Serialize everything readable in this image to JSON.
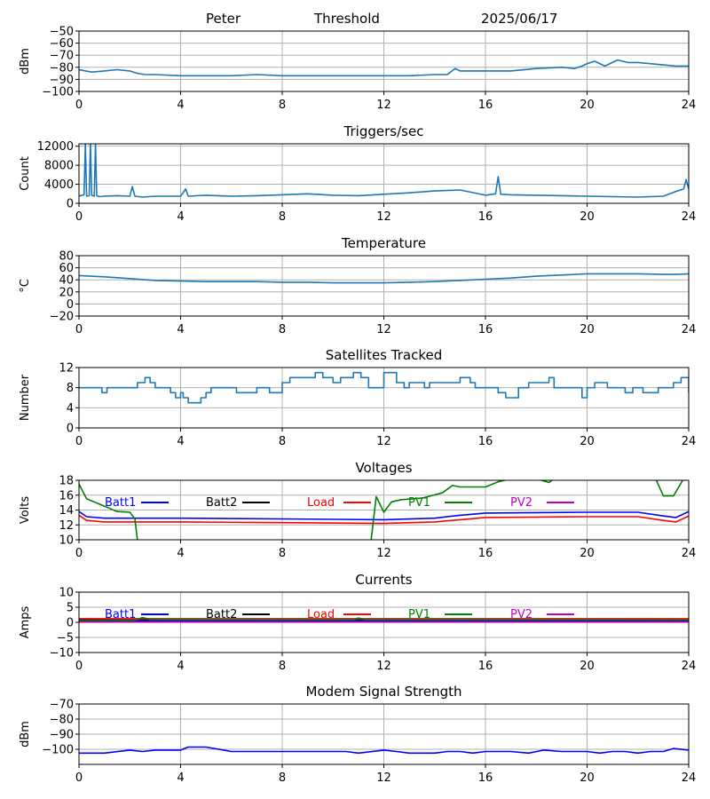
{
  "header": {
    "site": "Peter",
    "label": "Threshold",
    "date": "2025/06/17"
  },
  "x_axis": {
    "min": 0,
    "max": 24,
    "ticks": [
      0,
      4,
      8,
      12,
      16,
      20,
      24
    ]
  },
  "chart_data": [
    {
      "type": "line",
      "title": "",
      "ylabel": "dBm",
      "ylim": [
        -100,
        -50
      ],
      "yticks": [
        -100,
        -90,
        -80,
        -70,
        -60,
        -50
      ],
      "grid": true,
      "series": [
        {
          "color": "#1f77b4",
          "x": [
            0,
            0.5,
            1,
            1.5,
            2,
            2.3,
            2.6,
            3,
            4,
            5,
            6,
            7,
            8,
            9,
            10,
            11,
            12,
            13,
            14,
            14.5,
            14.8,
            15,
            16,
            17,
            18,
            19,
            19.5,
            19.8,
            20,
            20.3,
            20.7,
            21.2,
            21.6,
            22,
            23,
            23.5,
            24
          ],
          "y": [
            -82,
            -84,
            -83,
            -82,
            -83,
            -85,
            -86,
            -86,
            -87,
            -87,
            -87,
            -86,
            -87,
            -87,
            -87,
            -87,
            -87,
            -87,
            -86,
            -86,
            -81,
            -83,
            -83,
            -83,
            -81,
            -80,
            -81,
            -79,
            -77,
            -75,
            -79,
            -74,
            -76,
            -76,
            -78,
            -79,
            -79
          ]
        }
      ]
    },
    {
      "type": "line",
      "title": "Triggers/sec",
      "ylabel": "Count",
      "ylim": [
        0,
        12500
      ],
      "yticks": [
        0,
        4000,
        8000,
        12000
      ],
      "grid": true,
      "series": [
        {
          "color": "#1f77b4",
          "x": [
            0,
            0.2,
            0.25,
            0.3,
            0.4,
            0.45,
            0.5,
            0.6,
            0.65,
            0.7,
            0.8,
            1,
            1.5,
            2,
            2.1,
            2.2,
            2.5,
            3,
            4,
            4.2,
            4.3,
            5,
            6,
            7,
            8,
            9,
            10,
            11,
            12,
            13,
            14,
            15,
            16,
            16.4,
            16.5,
            16.6,
            17,
            18,
            19,
            20,
            21,
            22,
            23,
            23.5,
            23.8,
            23.9,
            24
          ],
          "y": [
            1500,
            1800,
            12500,
            1500,
            1600,
            12500,
            1700,
            1500,
            12500,
            1600,
            1400,
            1500,
            1600,
            1500,
            3500,
            1500,
            1300,
            1500,
            1500,
            3000,
            1500,
            1700,
            1500,
            1600,
            1800,
            2000,
            1700,
            1600,
            1900,
            2200,
            2600,
            2800,
            1700,
            2000,
            5600,
            1900,
            1800,
            1700,
            1600,
            1500,
            1400,
            1300,
            1500,
            2500,
            3000,
            5000,
            3000
          ]
        }
      ]
    },
    {
      "type": "line",
      "title": "Temperature",
      "ylabel": "°C",
      "ylim": [
        -20,
        80
      ],
      "yticks": [
        -20,
        0,
        20,
        40,
        60,
        80
      ],
      "grid": true,
      "series": [
        {
          "color": "#1f77b4",
          "x": [
            0,
            1,
            2,
            3,
            4,
            5,
            6,
            7,
            8,
            9,
            10,
            11,
            12,
            13,
            14,
            15,
            16,
            17,
            18,
            19,
            20,
            21,
            22,
            23,
            23.5,
            24
          ],
          "y": [
            47,
            45,
            42,
            39,
            38,
            37,
            37,
            37,
            36,
            36,
            35,
            35,
            35,
            36,
            37,
            39,
            41,
            43,
            46,
            48,
            50,
            50,
            50,
            49,
            49,
            50
          ]
        }
      ]
    },
    {
      "type": "line",
      "step": true,
      "title": "Satellites Tracked",
      "ylabel": "Number",
      "ylim": [
        0,
        12
      ],
      "yticks": [
        0,
        4,
        8,
        12
      ],
      "grid": true,
      "series": [
        {
          "color": "#1f77b4",
          "x": [
            0,
            0.9,
            1.1,
            2,
            2.3,
            2.6,
            2.8,
            3,
            3.6,
            3.8,
            4,
            4.1,
            4.3,
            4.8,
            5,
            5.2,
            6.2,
            6.4,
            7,
            7.5,
            8,
            8.3,
            9,
            9.3,
            9.6,
            10,
            10.3,
            10.8,
            11.1,
            11.4,
            12,
            12.5,
            12.8,
            13,
            13.6,
            13.8,
            14.5,
            15,
            15.4,
            15.6,
            16,
            16.5,
            16.8,
            17.3,
            17.7,
            18.5,
            18.7,
            19.2,
            19.8,
            20,
            20.3,
            20.8,
            21.5,
            21.8,
            22.2,
            22.8,
            23.4,
            23.7,
            24
          ],
          "y": [
            8,
            7,
            8,
            8,
            9,
            10,
            9,
            8,
            7,
            6,
            7,
            6,
            5,
            6,
            7,
            8,
            7,
            7,
            8,
            7,
            9,
            10,
            10,
            11,
            10,
            9,
            10,
            11,
            10,
            8,
            11,
            9,
            8,
            9,
            8,
            9,
            9,
            10,
            9,
            8,
            8,
            7,
            6,
            8,
            9,
            10,
            8,
            8,
            6,
            8,
            9,
            8,
            7,
            8,
            7,
            8,
            9,
            10,
            7
          ]
        }
      ]
    },
    {
      "type": "line",
      "title": "Voltages",
      "ylabel": "Volts",
      "ylim": [
        10,
        18
      ],
      "yticks": [
        10,
        12,
        14,
        16,
        18
      ],
      "grid": true,
      "series": [
        {
          "name": "Batt1",
          "color": "#0000ff",
          "x": [
            0,
            0.3,
            1,
            4,
            8,
            12,
            14,
            15,
            16,
            20,
            22,
            23,
            23.5,
            24
          ],
          "y": [
            13.8,
            13.1,
            12.9,
            12.9,
            12.8,
            12.7,
            12.9,
            13.3,
            13.6,
            13.7,
            13.7,
            13.2,
            13.0,
            13.8
          ]
        },
        {
          "name": "Batt2",
          "color": "#000000",
          "x": [],
          "y": []
        },
        {
          "name": "Load",
          "color": "#ff0000",
          "x": [
            0,
            0.3,
            1,
            4,
            8,
            12,
            14,
            15,
            16,
            20,
            22,
            23,
            23.5,
            24
          ],
          "y": [
            13.3,
            12.6,
            12.4,
            12.4,
            12.3,
            12.2,
            12.4,
            12.7,
            13.0,
            13.1,
            13.1,
            12.6,
            12.4,
            13.2
          ]
        },
        {
          "name": "PV1",
          "color": "#008000",
          "x": [
            0,
            0.3,
            0.8,
            1.5,
            2.0,
            2.2,
            2.3,
            null,
            11.5,
            11.7,
            12.0,
            12.3,
            12.7,
            13.5,
            14.3,
            14.7,
            15.0,
            15.5,
            16.0,
            16.5,
            17.0,
            null,
            18.0,
            18.5,
            18.7,
            null,
            22.7,
            23.0,
            23.4,
            23.8
          ],
          "y": [
            17.5,
            15.5,
            14.8,
            13.8,
            13.7,
            12.8,
            10,
            null,
            10,
            15.8,
            13.7,
            15.1,
            15.4,
            15.6,
            16.3,
            17.3,
            17.1,
            17.1,
            17.1,
            17.8,
            18.2,
            null,
            18.2,
            17.7,
            18.2,
            null,
            18.2,
            15.9,
            15.9,
            18.2
          ]
        },
        {
          "name": "PV2",
          "color": "#bf00bf",
          "x": [],
          "y": []
        }
      ]
    },
    {
      "type": "line",
      "title": "Currents",
      "ylabel": "Amps",
      "ylim": [
        -10,
        10
      ],
      "yticks": [
        -10,
        -5,
        0,
        5,
        10
      ],
      "grid": true,
      "series": [
        {
          "name": "Batt1",
          "color": "#0000ff",
          "x": [
            0,
            24
          ],
          "y": [
            0.4,
            0.4
          ]
        },
        {
          "name": "Batt2",
          "color": "#000000",
          "x": [
            0,
            24
          ],
          "y": [
            0.9,
            0.9
          ]
        },
        {
          "name": "Load",
          "color": "#ff0000",
          "x": [
            0,
            24
          ],
          "y": [
            1.2,
            1.2
          ]
        },
        {
          "name": "PV1",
          "color": "#008000",
          "x": [
            0,
            2.2,
            2.5,
            2.8,
            8,
            10.8,
            11.0,
            11.3,
            16,
            24
          ],
          "y": [
            0.6,
            0.7,
            1.6,
            1.0,
            0.9,
            0.9,
            1.4,
            0.9,
            0.9,
            0.8
          ]
        },
        {
          "name": "PV2",
          "color": "#bf00bf",
          "x": [
            0,
            24
          ],
          "y": [
            0.1,
            0.1
          ]
        }
      ]
    },
    {
      "type": "line",
      "title": "Modem Signal Strength",
      "ylabel": "dBm",
      "ylim": [
        -110,
        -70
      ],
      "yticks": [
        -100,
        -90,
        -80,
        -70
      ],
      "grid": true,
      "series": [
        {
          "color": "#0000ff",
          "x": [
            0,
            1,
            2,
            2.5,
            3,
            4,
            4.3,
            5,
            6,
            7,
            8,
            9,
            10,
            10.5,
            11,
            12,
            12.5,
            13,
            14,
            14.5,
            15,
            15.5,
            16,
            17,
            17.7,
            18.3,
            19,
            20,
            20.5,
            21,
            21.5,
            22,
            22.5,
            23,
            23.4,
            24
          ],
          "y": [
            -102.5,
            -102.5,
            -100.5,
            -101.5,
            -100.5,
            -100.5,
            -98.5,
            -98.5,
            -101.5,
            -101.5,
            -101.5,
            -101.5,
            -101.5,
            -101.5,
            -102.5,
            -100.5,
            -101.5,
            -102.5,
            -102.5,
            -101.5,
            -101.5,
            -102.5,
            -101.5,
            -101.5,
            -102.5,
            -100.5,
            -101.5,
            -101.5,
            -102.5,
            -101.5,
            -101.5,
            -102.5,
            -101.5,
            -101.5,
            -99.5,
            -100.5
          ]
        }
      ]
    }
  ]
}
